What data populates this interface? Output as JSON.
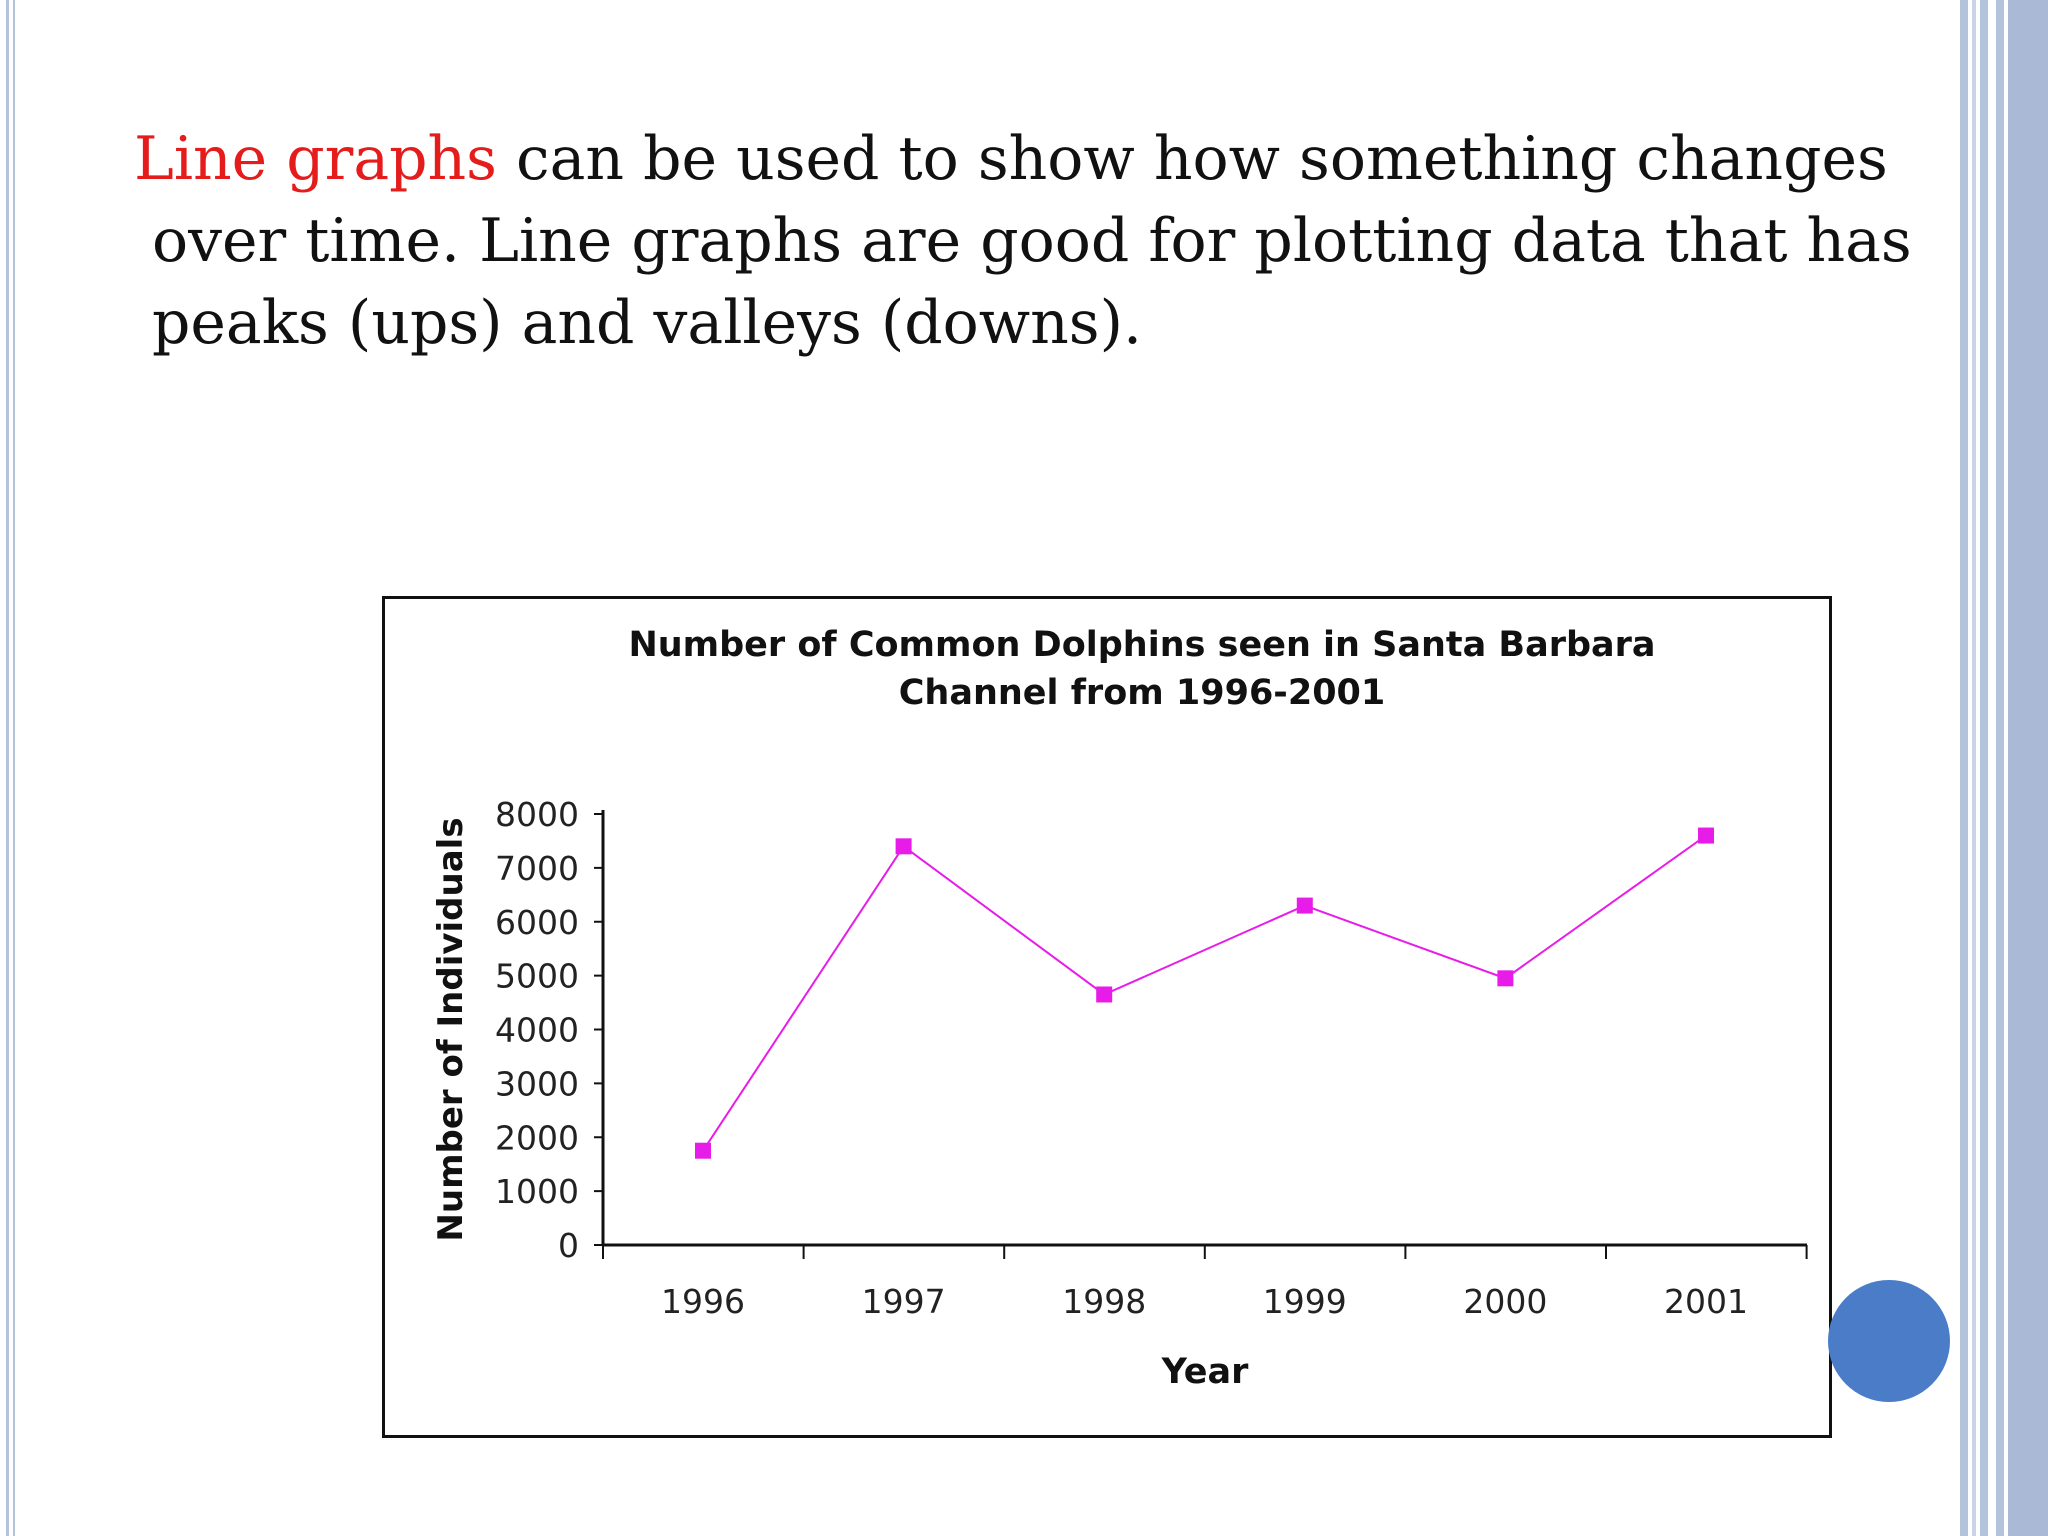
{
  "slide": {
    "text_lines": [
      {
        "accent": "Line graphs",
        "rest": " can be used to show how something changes"
      },
      {
        "accent": "",
        "rest": "over time. Line graphs are good for plotting data that has"
      },
      {
        "accent": "",
        "rest": "peaks (ups) and valleys (downs)."
      }
    ],
    "colors": {
      "accent": "#e41c1c",
      "text": "#111111",
      "band": "#b4c3dc",
      "circle": "#4a7cc7",
      "series": "#e81ce8"
    }
  },
  "chart_data": {
    "type": "line",
    "title": "Number of Common Dolphins seen in Santa Barbara Channel from 1996-2001",
    "title_lines": [
      "Number of Common Dolphins seen in Santa Barbara",
      "Channel from 1996-2001"
    ],
    "xlabel": "Year",
    "ylabel": "Number of Individuals",
    "categories": [
      "1996",
      "1997",
      "1998",
      "1999",
      "2000",
      "2001"
    ],
    "series": [
      {
        "values": [
          1750,
          7400,
          4650,
          6300,
          4950,
          7600
        ]
      }
    ],
    "ylim": [
      0,
      8000
    ],
    "yticks": [
      0,
      1000,
      2000,
      3000,
      4000,
      5000,
      6000,
      7000,
      8000
    ],
    "ytick_labels": [
      "0",
      "1000",
      "2000",
      "3000",
      "4000",
      "5000",
      "6000",
      "7000",
      "8000"
    ],
    "grid": false,
    "legend": "none",
    "marker": "square"
  }
}
